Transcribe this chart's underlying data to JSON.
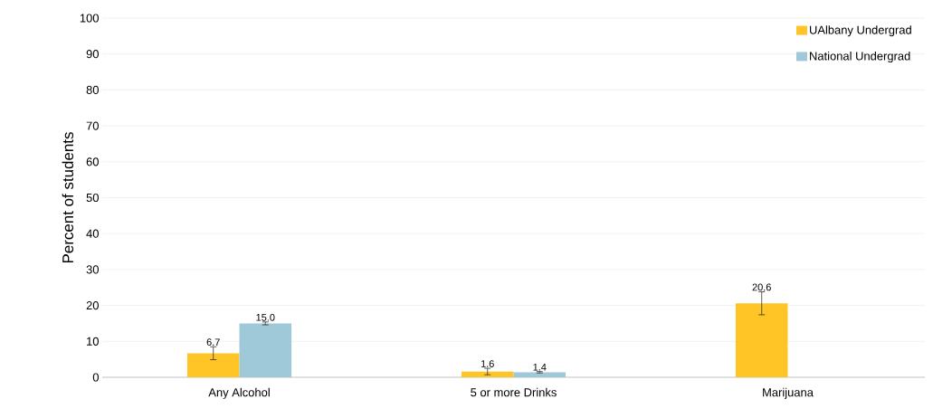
{
  "chart_data": {
    "type": "bar",
    "ylabel": "Percent of students",
    "categories": [
      "Any Alcohol",
      "5 or more Drinks",
      "Marijuana"
    ],
    "series": [
      {
        "name": "UAlbany Undergrad",
        "color": "#ffc425",
        "values": [
          6.7,
          1.6,
          20.6
        ],
        "errors": [
          1.8,
          0.9,
          3.2
        ],
        "value_labels": [
          "6.7",
          "1.6",
          "20.6"
        ]
      },
      {
        "name": "National Undergrad",
        "color": "#9fc8d8",
        "values": [
          15.0,
          1.4,
          null
        ],
        "errors": [
          0.4,
          0.2,
          null
        ],
        "value_labels": [
          "15.0",
          "1.4",
          null
        ]
      }
    ],
    "ylim": [
      0,
      100
    ],
    "yticks": [
      0,
      10,
      20,
      30,
      40,
      50,
      60,
      70,
      80,
      90,
      100
    ],
    "grid": "y",
    "legend": "top right"
  }
}
